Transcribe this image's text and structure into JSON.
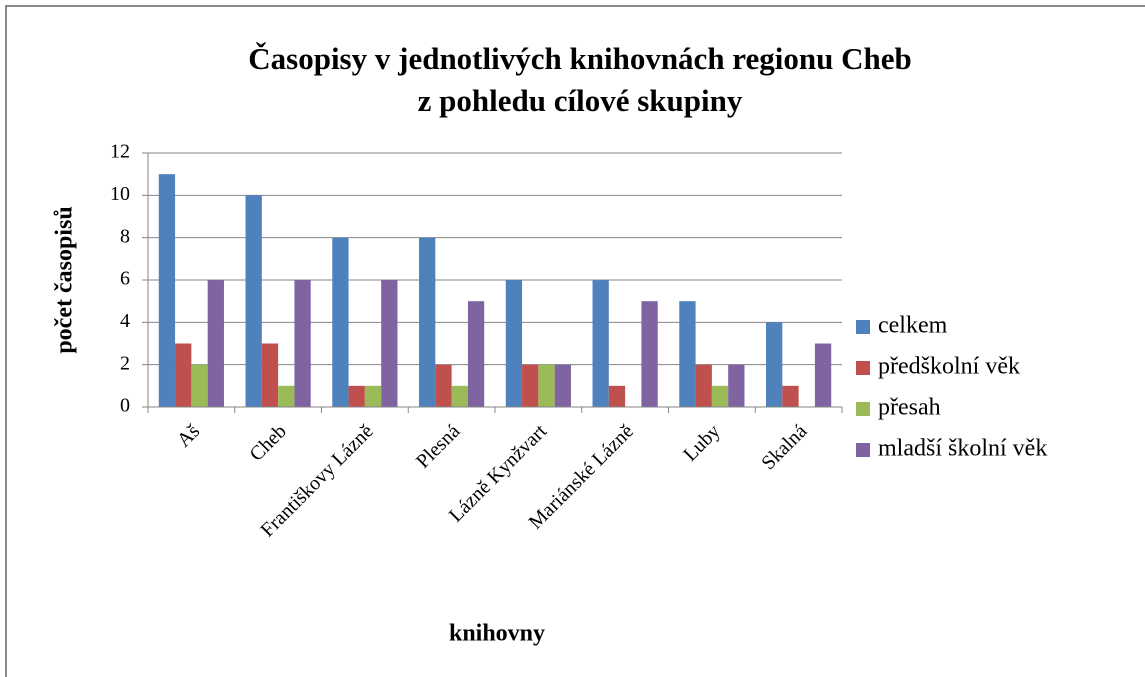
{
  "chart_data": {
    "type": "bar",
    "title": "Časopisy v jednotlivých knihovnách regionu Cheb",
    "subtitle": "z pohledu cílové skupiny",
    "x_label": "knihovny",
    "y_label": "počet časopisů",
    "categories": [
      "Aš",
      "Cheb",
      "Františkovy Lázně",
      "Plesná",
      "Lázně Kynžvart",
      "Mariánské Lázně",
      "Luby",
      "Skalná"
    ],
    "series": [
      {
        "name": "celkem",
        "color": "#4f81bd",
        "values": [
          11,
          10,
          8,
          8,
          6,
          6,
          5,
          4
        ]
      },
      {
        "name": "předškolní věk",
        "color": "#c0504d",
        "values": [
          3,
          3,
          1,
          2,
          2,
          1,
          2,
          1
        ]
      },
      {
        "name": "přesah",
        "color": "#9bbb59",
        "values": [
          2,
          1,
          1,
          1,
          2,
          0,
          1,
          0
        ]
      },
      {
        "name": "mladší školní věk",
        "color": "#8064a2",
        "values": [
          6,
          6,
          6,
          5,
          2,
          5,
          2,
          3
        ]
      }
    ],
    "ylim": [
      0,
      12
    ],
    "yticks": [
      0,
      2,
      4,
      6,
      8,
      10,
      12
    ],
    "grid": true,
    "legend": "right"
  }
}
